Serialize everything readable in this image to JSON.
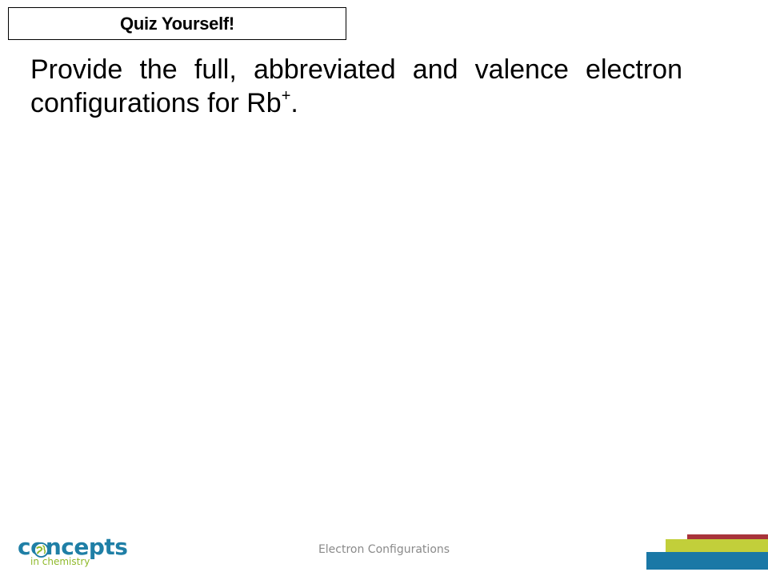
{
  "slide": {
    "title": "Quiz Yourself!",
    "question_main": "Provide the full, abbreviated and valence electron configurations for Rb",
    "question_superscript": "+",
    "question_end": ".",
    "footer": "Electron Configurations"
  },
  "logo": {
    "brand": "concepts",
    "tagline": "in chemistry",
    "icon": "globe-icon"
  },
  "colors": {
    "logo_blue": "#1f7fa6",
    "logo_green": "#8fb92a",
    "stripe_red": "#a8343a",
    "stripe_green": "#c2cf3a",
    "stripe_blue": "#1a78a6"
  }
}
